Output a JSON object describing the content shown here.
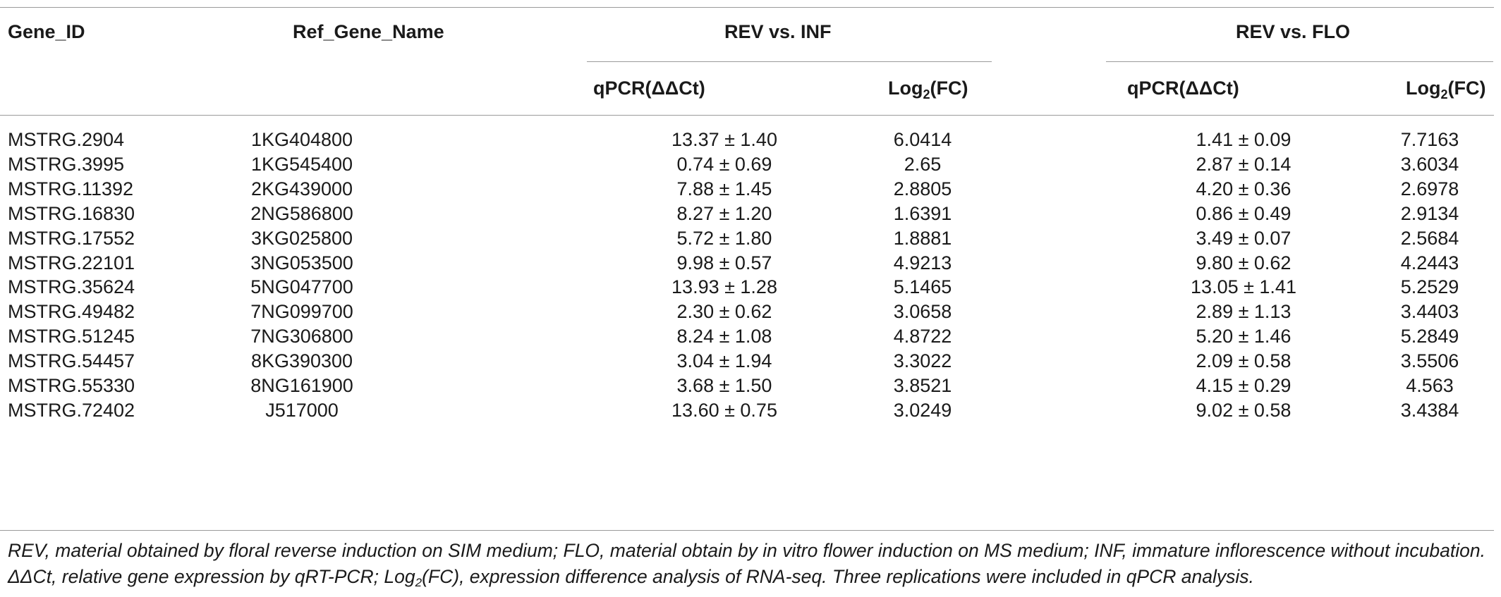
{
  "headers": {
    "gene_id": "Gene_ID",
    "ref_gene_name": "Ref_Gene_Name",
    "group_inf": "REV vs. INF",
    "group_flo": "REV vs. FLO",
    "qpcr_label": "qPCR(ΔΔCt)",
    "log_prefix": "Log",
    "log_sub": "2",
    "log_suffix": "(FC)"
  },
  "rows": [
    {
      "gene_id": "MSTRG.2904",
      "ref": "1KG404800",
      "q_inf": "13.37 ± 1.40",
      "log_inf": "6.0414",
      "q_flo": "1.41 ± 0.09",
      "log_flo": "7.7163"
    },
    {
      "gene_id": "MSTRG.3995",
      "ref": "1KG545400",
      "q_inf": "0.74 ± 0.69",
      "log_inf": "2.65",
      "q_flo": "2.87 ± 0.14",
      "log_flo": "3.6034"
    },
    {
      "gene_id": "MSTRG.11392",
      "ref": "2KG439000",
      "q_inf": "7.88 ± 1.45",
      "log_inf": "2.8805",
      "q_flo": "4.20 ± 0.36",
      "log_flo": "2.6978"
    },
    {
      "gene_id": "MSTRG.16830",
      "ref": "2NG586800",
      "q_inf": "8.27 ± 1.20",
      "log_inf": "1.6391",
      "q_flo": "0.86 ± 0.49",
      "log_flo": "2.9134"
    },
    {
      "gene_id": "MSTRG.17552",
      "ref": "3KG025800",
      "q_inf": "5.72 ± 1.80",
      "log_inf": "1.8881",
      "q_flo": "3.49 ± 0.07",
      "log_flo": "2.5684"
    },
    {
      "gene_id": "MSTRG.22101",
      "ref": "3NG053500",
      "q_inf": "9.98 ± 0.57",
      "log_inf": "4.9213",
      "q_flo": "9.80 ± 0.62",
      "log_flo": "4.2443"
    },
    {
      "gene_id": "MSTRG.35624",
      "ref": "5NG047700",
      "q_inf": "13.93 ± 1.28",
      "log_inf": "5.1465",
      "q_flo": "13.05 ± 1.41",
      "log_flo": "5.2529"
    },
    {
      "gene_id": "MSTRG.49482",
      "ref": "7NG099700",
      "q_inf": "2.30 ± 0.62",
      "log_inf": "3.0658",
      "q_flo": "2.89 ± 1.13",
      "log_flo": "3.4403"
    },
    {
      "gene_id": "MSTRG.51245",
      "ref": "7NG306800",
      "q_inf": "8.24 ± 1.08",
      "log_inf": "4.8722",
      "q_flo": "5.20 ± 1.46",
      "log_flo": "5.2849"
    },
    {
      "gene_id": "MSTRG.54457",
      "ref": "8KG390300",
      "q_inf": "3.04 ± 1.94",
      "log_inf": "3.3022",
      "q_flo": "2.09 ± 0.58",
      "log_flo": "3.5506"
    },
    {
      "gene_id": "MSTRG.55330",
      "ref": "8NG161900",
      "q_inf": "3.68 ± 1.50",
      "log_inf": "3.8521",
      "q_flo": "4.15 ± 0.29",
      "log_flo": "4.563"
    },
    {
      "gene_id": "MSTRG.72402",
      "ref": "J517000",
      "q_inf": "13.60 ± 0.75",
      "log_inf": "3.0249",
      "q_flo": "9.02 ± 0.58",
      "log_flo": "3.4384"
    }
  ],
  "footnote": {
    "part1": "REV, material obtained by floral reverse induction on SIM medium; FLO, material obtain by in vitro flower induction on MS medium; INF, immature inflorescence without incubation. ΔΔCt, relative gene expression by qRT-PCR; Log",
    "sub": "2",
    "part2": "(FC), expression difference analysis of RNA-seq. Three replications were included in qPCR analysis."
  }
}
